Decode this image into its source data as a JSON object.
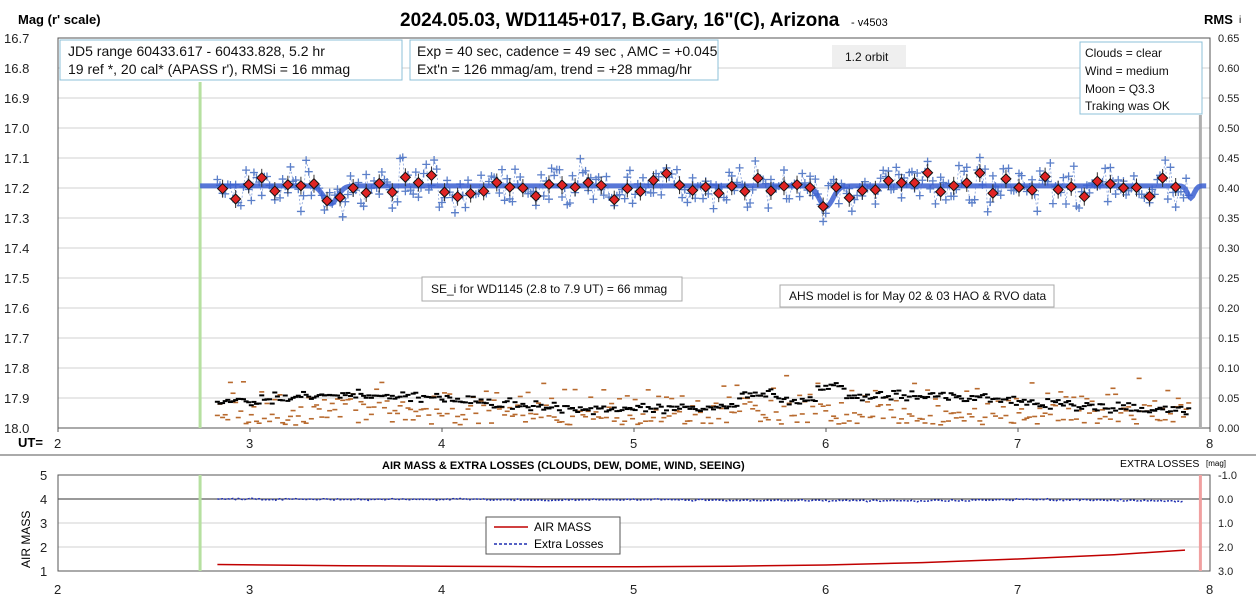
{
  "chart_data": [
    {
      "type": "scatter",
      "title": "2024.05.03, WD1145+017, B.Gary, 16\"(C), Arizona",
      "version": "- v4503",
      "ylabel_left": "Mag (r' scale)",
      "ylabel_right": "RMS",
      "ylabel_right_suffix": "i",
      "xlabel": "UT=",
      "xlim": [
        2,
        8
      ],
      "ylim_left": [
        16.7,
        18.0
      ],
      "ylim_right": [
        0.0,
        0.65
      ],
      "y_inverted": true,
      "x_ticks": [
        "2",
        "3",
        "4",
        "5",
        "6",
        "7",
        "8"
      ],
      "y_left_ticks": [
        "16.7",
        "16.8",
        "16.9",
        "17.0",
        "17.1",
        "17.2",
        "17.3",
        "17.4",
        "17.5",
        "17.6",
        "17.7",
        "17.8",
        "17.9",
        "18.0"
      ],
      "y_right_ticks": [
        "0.65",
        "0.60",
        "0.55",
        "0.50",
        "0.45",
        "0.40",
        "0.35",
        "0.30",
        "0.25",
        "0.20",
        "0.15",
        "0.10",
        "0.05",
        "0.00"
      ],
      "start_marker_ut": 2.74,
      "end_marker_ut": 7.95,
      "model_mag": 17.193,
      "model_dips": [
        {
          "ut": 3.42,
          "depth": 0.06,
          "width": 0.05
        },
        {
          "ut": 6.0,
          "depth": 0.07,
          "width": 0.05
        },
        {
          "ut": 7.9,
          "depth": 0.04,
          "width": 0.025
        }
      ],
      "series": [
        {
          "name": "individual mags",
          "color": "#5b7fc9"
        },
        {
          "name": "5-point averages",
          "color": "#e02424"
        },
        {
          "name": "AHS model",
          "color": "#3b5fd1"
        },
        {
          "name": "RMS",
          "color": "#000000"
        },
        {
          "name": "residuals",
          "color": "#b86a2e"
        }
      ],
      "annotations": {
        "jd_box": [
          "JD5 range 60433.617 - 60433.828, 5.2 hr",
          "19 ref *, 20 cal*  (APASS r'), RMSi = 16 mmag"
        ],
        "exp_box": [
          "Exp = 40 sec, cadence = 49 sec , AMC = +0.045",
          "Ext'n = 126 mmag/am, trend = +28 mmag/hr"
        ],
        "orbit_label": "1.2 orbit",
        "conditions_box": [
          "Clouds = clear",
          "Wind    =  medium",
          "Moon    =  Q3.3",
          "Traking was OK"
        ],
        "se_box": "SE_i for WD1145 (2.8 to 7.9 UT) = 66 mmag",
        "ahs_box": "AHS model is for May 02 & 03 HAO & RVO data"
      }
    },
    {
      "type": "line",
      "title": "AIR MASS & EXTRA LOSSES (CLOUDS, DEW, DOME, WIND, SEEING)",
      "ylabel_left": "AIR MASS",
      "ylabel_right": "EXTRA LOSSES",
      "ylabel_right_unit": "[mag]",
      "xlim": [
        2,
        8
      ],
      "ylim_left": [
        1,
        5
      ],
      "ylim_right": [
        3.0,
        -1.0
      ],
      "x_ticks": [
        "2",
        "3",
        "4",
        "5",
        "6",
        "7",
        "8"
      ],
      "y_left_ticks": [
        "5",
        "4",
        "3",
        "2",
        "1"
      ],
      "y_right_ticks": [
        "-1.0",
        "0.0",
        "1.0",
        "2.0",
        "3.0"
      ],
      "legend": [
        "AIR MASS",
        "Extra Losses"
      ],
      "series": [
        {
          "name": "AIR MASS",
          "color": "#c00000",
          "x": [
            2.83,
            3.5,
            4.0,
            4.5,
            5.0,
            5.5,
            6.0,
            6.5,
            7.0,
            7.5,
            7.87
          ],
          "y": [
            1.27,
            1.22,
            1.2,
            1.18,
            1.18,
            1.2,
            1.25,
            1.35,
            1.5,
            1.68,
            1.87
          ]
        },
        {
          "name": "Extra Losses",
          "color": "#1f2fb0",
          "x": [
            2.83,
            3.5,
            4.0,
            4.5,
            5.0,
            5.5,
            6.0,
            6.5,
            7.0,
            7.5,
            7.87
          ],
          "y": [
            0.0,
            0.02,
            0.01,
            0.04,
            0.03,
            0.05,
            0.06,
            0.08,
            0.02,
            0.05,
            0.1
          ]
        }
      ]
    }
  ]
}
